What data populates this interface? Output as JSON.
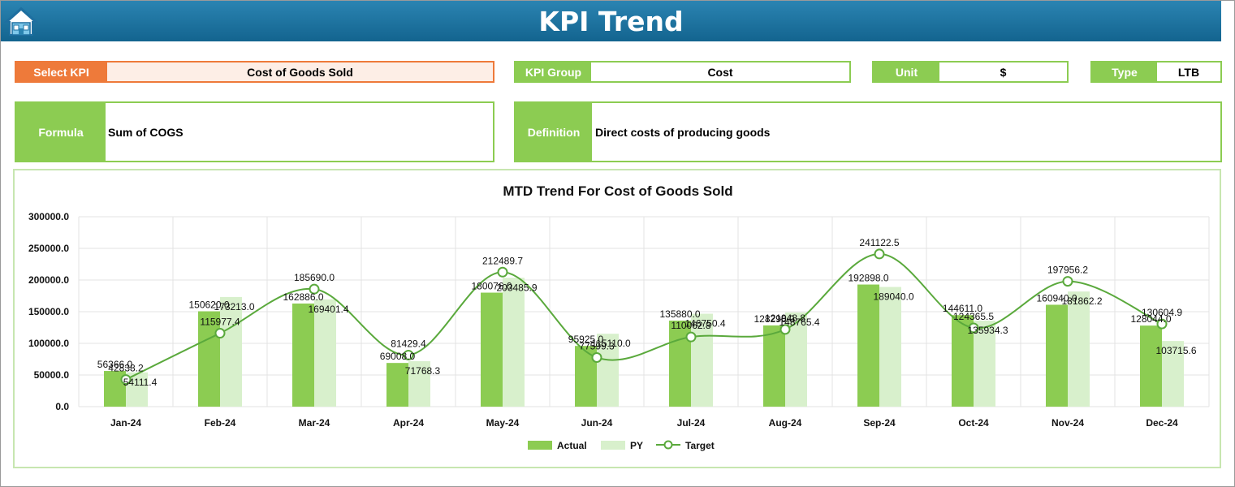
{
  "header": {
    "title": "KPI Trend",
    "home_icon": "home-icon"
  },
  "fields": {
    "select_kpi": {
      "label": "Select KPI",
      "value": "Cost of Goods Sold"
    },
    "kpi_group": {
      "label": "KPI Group",
      "value": "Cost"
    },
    "unit": {
      "label": "Unit",
      "value": "$"
    },
    "type": {
      "label": "Type",
      "value": "LTB"
    },
    "formula": {
      "label": "Formula",
      "value": "Sum of COGS"
    },
    "definition": {
      "label": "Definition",
      "value": "Direct costs of producing goods"
    }
  },
  "colors": {
    "accent_green": "#8ccc52",
    "select_orange": "#ee7a3a",
    "actual": "#8ccc52",
    "py": "#d8f0cc",
    "target": "#5aa93c",
    "header_blue": "#1f75a3"
  },
  "chart_data": {
    "type": "bar",
    "title": "MTD Trend For Cost of Goods Sold",
    "categories": [
      "Jan-24",
      "Feb-24",
      "Mar-24",
      "Apr-24",
      "May-24",
      "Jun-24",
      "Jul-24",
      "Aug-24",
      "Sep-24",
      "Oct-24",
      "Nov-24",
      "Dec-24"
    ],
    "series": [
      {
        "name": "Actual",
        "kind": "bar",
        "values": [
          56366.0,
          150620.0,
          162886.0,
          69008.0,
          180076.0,
          95925.0,
          135880.0,
          128296.0,
          192898.0,
          144611.0,
          160940.0,
          128044.0
        ],
        "labels": [
          "56366.0",
          "150620.0",
          "162886.0",
          "69008.0",
          "180076.0",
          "95925.0",
          "135880.0",
          "128296.0",
          "192898.0",
          "144611.0",
          "160940.0",
          "128044.0"
        ]
      },
      {
        "name": "PY",
        "kind": "bar",
        "values": [
          54111.4,
          173213.0,
          169401.4,
          71768.3,
          203485.9,
          115110.0,
          146750.4,
          148765.4,
          189040.0,
          135934.3,
          181862.2,
          103715.6
        ],
        "labels": [
          "54111.4",
          "173213.0",
          "169401.4",
          "71768.3",
          "203485.9",
          "115110.0",
          "146750.4",
          "148765.4",
          "189040.0",
          "135934.3",
          "181862.2",
          "103715.6"
        ]
      },
      {
        "name": "Target",
        "kind": "line",
        "values": [
          42838.2,
          115977.4,
          185690.0,
          81429.4,
          212489.7,
          77599.3,
          110062.8,
          121948.8,
          241122.5,
          124365.5,
          197956.2,
          130604.9
        ],
        "labels": [
          "42838.2",
          "115977.4",
          "185690.0",
          "81429.4",
          "212489.7",
          "77599.3",
          "110062.8",
          "121948.8",
          "241122.5",
          "124365.5",
          "197956.2",
          "130604.9"
        ]
      }
    ],
    "ylim": [
      0,
      300000
    ],
    "yticks": [
      "0.0",
      "50000.0",
      "100000.0",
      "150000.0",
      "200000.0",
      "250000.0",
      "300000.0"
    ],
    "grid": true,
    "legend": "bottom"
  }
}
